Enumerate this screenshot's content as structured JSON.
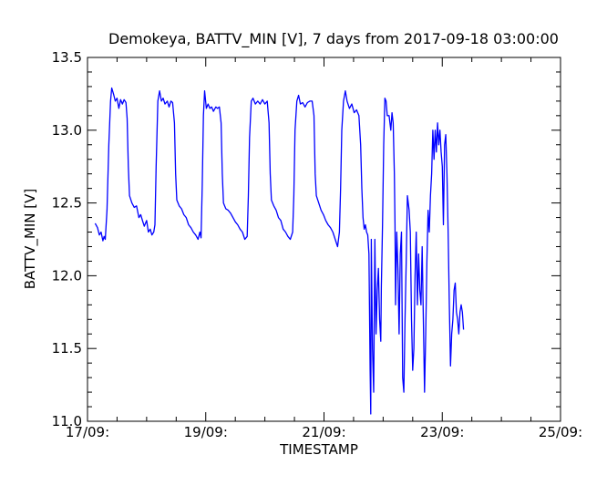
{
  "chart_data": {
    "type": "line",
    "title": "Demokeya, BATTV_MIN [V], 7 days from  2017-09-18 03:00:00",
    "xlabel": "TIMESTAMP",
    "ylabel": "BATTV_MIN [V]",
    "x_unit": "days since 17/09 00:00",
    "xlim": [
      0,
      8
    ],
    "ylim": [
      11.0,
      13.5
    ],
    "x_ticks": [
      {
        "value": 0,
        "label": "17/09:"
      },
      {
        "value": 2,
        "label": "19/09:"
      },
      {
        "value": 4,
        "label": "21/09:"
      },
      {
        "value": 6,
        "label": "23/09:"
      },
      {
        "value": 8,
        "label": "25/09:"
      }
    ],
    "y_ticks": [
      {
        "value": 11.0,
        "label": "11.0"
      },
      {
        "value": 11.5,
        "label": "11.5"
      },
      {
        "value": 12.0,
        "label": "12.0"
      },
      {
        "value": 12.5,
        "label": "12.5"
      },
      {
        "value": 13.0,
        "label": "13.0"
      },
      {
        "value": 13.5,
        "label": "13.5"
      }
    ],
    "grid": false,
    "colors": {
      "series": "#0000ff",
      "axes": "#000000",
      "background": "#ffffff"
    },
    "series": [
      {
        "points": [
          [
            0.13,
            12.36
          ],
          [
            0.17,
            12.33
          ],
          [
            0.2,
            12.28
          ],
          [
            0.23,
            12.3
          ],
          [
            0.26,
            12.24
          ],
          [
            0.28,
            12.27
          ],
          [
            0.3,
            12.25
          ],
          [
            0.33,
            12.45
          ],
          [
            0.36,
            12.9
          ],
          [
            0.39,
            13.2
          ],
          [
            0.41,
            13.29
          ],
          [
            0.44,
            13.25
          ],
          [
            0.47,
            13.2
          ],
          [
            0.5,
            13.22
          ],
          [
            0.53,
            13.15
          ],
          [
            0.56,
            13.21
          ],
          [
            0.59,
            13.18
          ],
          [
            0.62,
            13.21
          ],
          [
            0.65,
            13.19
          ],
          [
            0.67,
            13.08
          ],
          [
            0.69,
            12.75
          ],
          [
            0.71,
            12.55
          ],
          [
            0.75,
            12.5
          ],
          [
            0.79,
            12.47
          ],
          [
            0.83,
            12.48
          ],
          [
            0.87,
            12.4
          ],
          [
            0.9,
            12.42
          ],
          [
            0.93,
            12.38
          ],
          [
            0.96,
            12.34
          ],
          [
            1.0,
            12.38
          ],
          [
            1.03,
            12.3
          ],
          [
            1.06,
            12.32
          ],
          [
            1.09,
            12.28
          ],
          [
            1.12,
            12.3
          ],
          [
            1.14,
            12.35
          ],
          [
            1.16,
            12.75
          ],
          [
            1.19,
            13.2
          ],
          [
            1.22,
            13.27
          ],
          [
            1.25,
            13.2
          ],
          [
            1.28,
            13.22
          ],
          [
            1.31,
            13.18
          ],
          [
            1.35,
            13.2
          ],
          [
            1.38,
            13.16
          ],
          [
            1.41,
            13.2
          ],
          [
            1.44,
            13.19
          ],
          [
            1.47,
            13.05
          ],
          [
            1.49,
            12.7
          ],
          [
            1.51,
            12.52
          ],
          [
            1.55,
            12.48
          ],
          [
            1.59,
            12.46
          ],
          [
            1.63,
            12.42
          ],
          [
            1.67,
            12.4
          ],
          [
            1.71,
            12.35
          ],
          [
            1.75,
            12.33
          ],
          [
            1.79,
            12.3
          ],
          [
            1.83,
            12.28
          ],
          [
            1.87,
            12.25
          ],
          [
            1.9,
            12.3
          ],
          [
            1.92,
            12.26
          ],
          [
            1.94,
            12.62
          ],
          [
            1.96,
            13.1
          ],
          [
            1.98,
            13.27
          ],
          [
            2.01,
            13.15
          ],
          [
            2.04,
            13.18
          ],
          [
            2.07,
            13.15
          ],
          [
            2.1,
            13.16
          ],
          [
            2.13,
            13.13
          ],
          [
            2.17,
            13.16
          ],
          [
            2.2,
            13.15
          ],
          [
            2.23,
            13.16
          ],
          [
            2.26,
            13.05
          ],
          [
            2.28,
            12.7
          ],
          [
            2.3,
            12.5
          ],
          [
            2.34,
            12.46
          ],
          [
            2.38,
            12.45
          ],
          [
            2.42,
            12.43
          ],
          [
            2.46,
            12.4
          ],
          [
            2.5,
            12.37
          ],
          [
            2.54,
            12.35
          ],
          [
            2.58,
            12.32
          ],
          [
            2.62,
            12.3
          ],
          [
            2.66,
            12.25
          ],
          [
            2.7,
            12.27
          ],
          [
            2.72,
            12.55
          ],
          [
            2.74,
            12.95
          ],
          [
            2.77,
            13.2
          ],
          [
            2.8,
            13.22
          ],
          [
            2.84,
            13.18
          ],
          [
            2.88,
            13.2
          ],
          [
            2.92,
            13.18
          ],
          [
            2.96,
            13.21
          ],
          [
            3.0,
            13.18
          ],
          [
            3.04,
            13.2
          ],
          [
            3.07,
            13.05
          ],
          [
            3.09,
            12.7
          ],
          [
            3.11,
            12.52
          ],
          [
            3.15,
            12.48
          ],
          [
            3.19,
            12.45
          ],
          [
            3.23,
            12.4
          ],
          [
            3.27,
            12.38
          ],
          [
            3.31,
            12.32
          ],
          [
            3.35,
            12.3
          ],
          [
            3.39,
            12.27
          ],
          [
            3.43,
            12.25
          ],
          [
            3.47,
            12.3
          ],
          [
            3.49,
            12.55
          ],
          [
            3.51,
            13.0
          ],
          [
            3.54,
            13.2
          ],
          [
            3.57,
            13.24
          ],
          [
            3.6,
            13.18
          ],
          [
            3.64,
            13.19
          ],
          [
            3.68,
            13.16
          ],
          [
            3.72,
            13.19
          ],
          [
            3.76,
            13.2
          ],
          [
            3.8,
            13.2
          ],
          [
            3.83,
            13.1
          ],
          [
            3.85,
            12.7
          ],
          [
            3.87,
            12.55
          ],
          [
            3.91,
            12.5
          ],
          [
            3.95,
            12.45
          ],
          [
            3.99,
            12.42
          ],
          [
            4.03,
            12.38
          ],
          [
            4.07,
            12.35
          ],
          [
            4.11,
            12.33
          ],
          [
            4.15,
            12.3
          ],
          [
            4.19,
            12.25
          ],
          [
            4.23,
            12.2
          ],
          [
            4.26,
            12.3
          ],
          [
            4.28,
            12.6
          ],
          [
            4.3,
            13.0
          ],
          [
            4.33,
            13.2
          ],
          [
            4.36,
            13.27
          ],
          [
            4.39,
            13.2
          ],
          [
            4.43,
            13.15
          ],
          [
            4.47,
            13.18
          ],
          [
            4.51,
            13.12
          ],
          [
            4.55,
            13.14
          ],
          [
            4.59,
            13.1
          ],
          [
            4.62,
            12.9
          ],
          [
            4.64,
            12.6
          ],
          [
            4.66,
            12.4
          ],
          [
            4.68,
            12.32
          ],
          [
            4.7,
            12.35
          ],
          [
            4.72,
            12.3
          ],
          [
            4.74,
            12.28
          ],
          [
            4.76,
            12.15
          ],
          [
            4.78,
            11.35
          ],
          [
            4.79,
            11.05
          ],
          [
            4.8,
            12.25
          ],
          [
            4.82,
            11.5
          ],
          [
            4.84,
            11.2
          ],
          [
            4.86,
            12.25
          ],
          [
            4.88,
            11.6
          ],
          [
            4.9,
            11.9
          ],
          [
            4.92,
            12.05
          ],
          [
            4.94,
            11.7
          ],
          [
            4.96,
            11.55
          ],
          [
            4.97,
            11.92
          ],
          [
            4.99,
            12.35
          ],
          [
            5.01,
            12.9
          ],
          [
            5.03,
            13.22
          ],
          [
            5.05,
            13.2
          ],
          [
            5.07,
            13.1
          ],
          [
            5.1,
            13.1
          ],
          [
            5.13,
            13.0
          ],
          [
            5.15,
            13.12
          ],
          [
            5.17,
            13.05
          ],
          [
            5.19,
            12.7
          ],
          [
            5.2,
            12.35
          ],
          [
            5.21,
            11.8
          ],
          [
            5.23,
            12.3
          ],
          [
            5.25,
            12.05
          ],
          [
            5.27,
            11.6
          ],
          [
            5.29,
            12.15
          ],
          [
            5.31,
            12.3
          ],
          [
            5.33,
            11.3
          ],
          [
            5.35,
            11.2
          ],
          [
            5.37,
            11.7
          ],
          [
            5.39,
            12.1
          ],
          [
            5.41,
            12.55
          ],
          [
            5.44,
            12.45
          ],
          [
            5.46,
            12.3
          ],
          [
            5.48,
            11.7
          ],
          [
            5.5,
            11.35
          ],
          [
            5.52,
            11.5
          ],
          [
            5.54,
            12.0
          ],
          [
            5.56,
            12.3
          ],
          [
            5.58,
            11.8
          ],
          [
            5.6,
            12.15
          ],
          [
            5.62,
            11.9
          ],
          [
            5.64,
            11.8
          ],
          [
            5.66,
            12.2
          ],
          [
            5.68,
            11.7
          ],
          [
            5.7,
            11.2
          ],
          [
            5.72,
            11.6
          ],
          [
            5.74,
            12.1
          ],
          [
            5.76,
            12.45
          ],
          [
            5.78,
            12.3
          ],
          [
            5.8,
            12.55
          ],
          [
            5.82,
            12.7
          ],
          [
            5.84,
            13.0
          ],
          [
            5.86,
            12.8
          ],
          [
            5.88,
            13.0
          ],
          [
            5.9,
            12.85
          ],
          [
            5.92,
            13.05
          ],
          [
            5.94,
            12.9
          ],
          [
            5.96,
            13.0
          ],
          [
            5.98,
            12.85
          ],
          [
            6.0,
            12.75
          ],
          [
            6.02,
            12.35
          ],
          [
            6.04,
            12.9
          ],
          [
            6.06,
            12.97
          ],
          [
            6.08,
            12.7
          ],
          [
            6.1,
            12.3
          ],
          [
            6.12,
            11.8
          ],
          [
            6.14,
            11.38
          ],
          [
            6.16,
            11.6
          ],
          [
            6.18,
            11.7
          ],
          [
            6.2,
            11.9
          ],
          [
            6.22,
            11.95
          ],
          [
            6.24,
            11.75
          ],
          [
            6.26,
            11.7
          ],
          [
            6.28,
            11.6
          ],
          [
            6.3,
            11.75
          ],
          [
            6.32,
            11.8
          ],
          [
            6.34,
            11.75
          ],
          [
            6.36,
            11.63
          ]
        ]
      }
    ]
  }
}
